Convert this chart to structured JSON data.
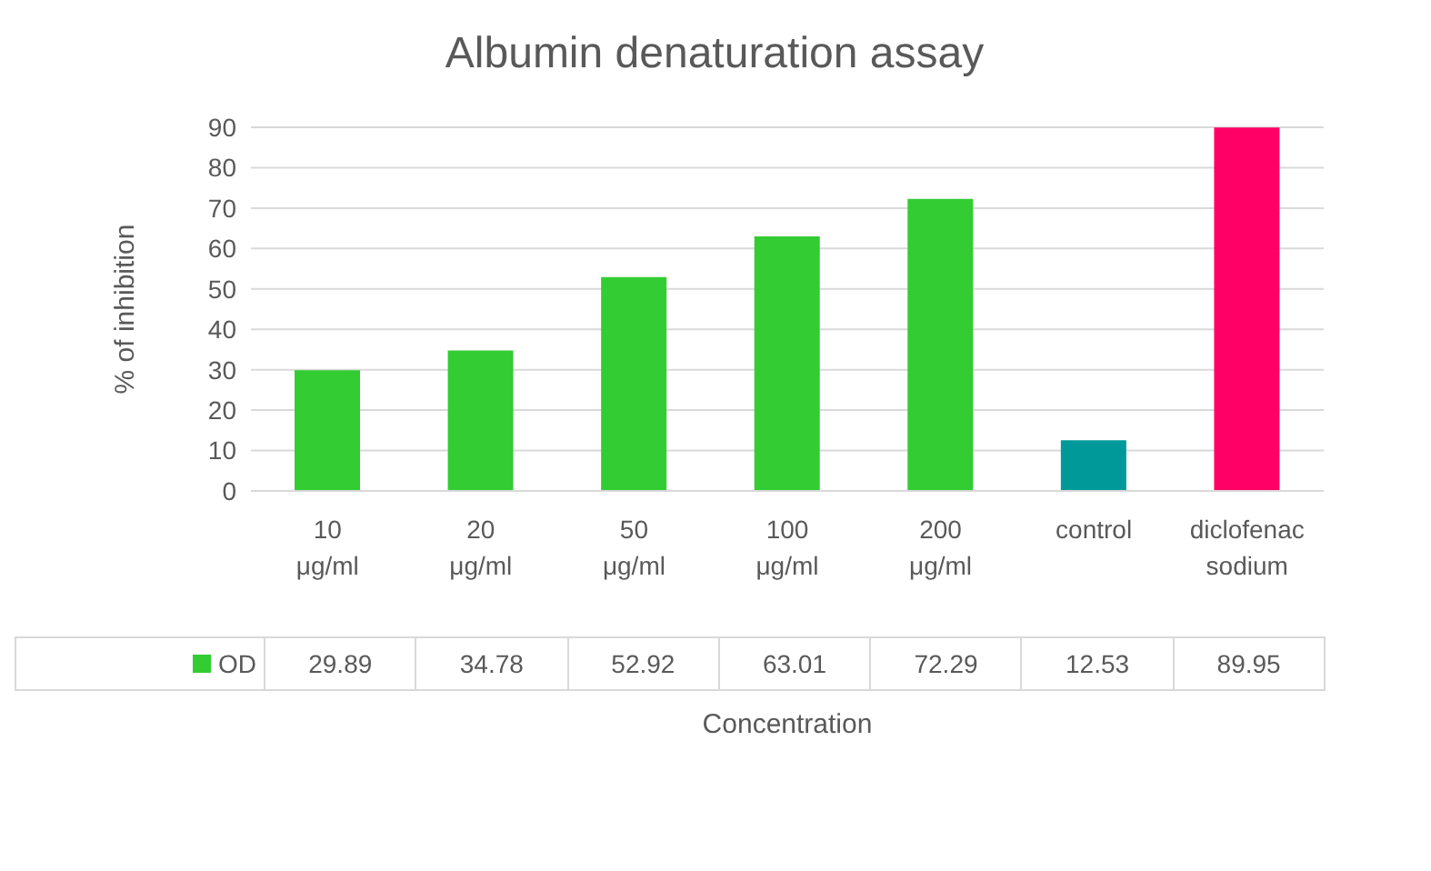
{
  "chart_data": {
    "type": "bar",
    "title": "Albumin denaturation assay",
    "xlabel": "Concentration",
    "ylabel": "% of inhibition",
    "categories": [
      "10 μg/ml",
      "20 μg/ml",
      "50 μg/ml",
      "100 μg/ml",
      "200 μg/ml",
      "control",
      "diclofenac sodium"
    ],
    "series": [
      {
        "name": "OD",
        "color": "#33cc33",
        "colors": [
          "#33cc33",
          "#33cc33",
          "#33cc33",
          "#33cc33",
          "#33cc33",
          "#009999",
          "#ff0066"
        ],
        "values": [
          29.89,
          34.78,
          52.92,
          63.01,
          72.29,
          12.53,
          89.95
        ]
      }
    ],
    "ylim": [
      0,
      90
    ],
    "yticks": [
      0,
      10,
      20,
      30,
      40,
      50,
      60,
      70,
      80,
      90
    ],
    "grid": "y",
    "legend": "bottom",
    "data_labels": true
  }
}
